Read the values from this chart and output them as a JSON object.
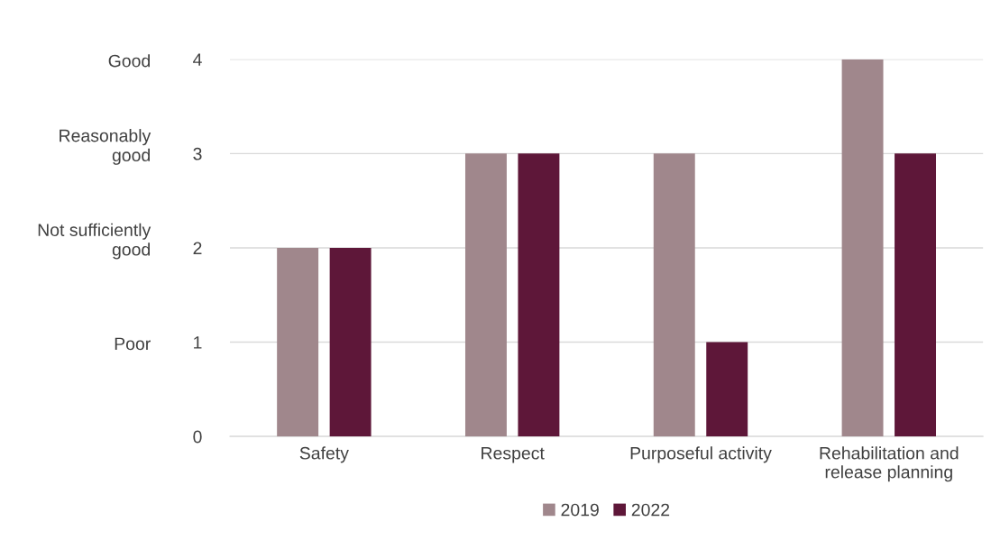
{
  "chart_data": {
    "type": "bar",
    "categories": [
      "Safety",
      "Respect",
      "Purposeful activity",
      "Rehabilitation and\nrelease planning"
    ],
    "series": [
      {
        "name": "2019",
        "color": "#a0878c",
        "values": [
          2,
          3,
          3,
          4
        ]
      },
      {
        "name": "2022",
        "color": "#5e1739",
        "values": [
          2,
          3,
          1,
          3
        ]
      }
    ],
    "ylim": [
      0,
      4
    ],
    "yticks": [
      0,
      1,
      2,
      3,
      4
    ],
    "grid": "y",
    "legend": "bottom",
    "annotations": [
      "Good",
      "Reasonably\ngood",
      "Not sufficiently\ngood",
      "Poor"
    ]
  }
}
